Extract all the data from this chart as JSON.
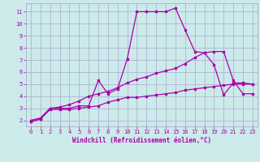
{
  "background_color": "#cceaea",
  "grid_color": "#aaaacc",
  "line_color": "#aa00aa",
  "xlim": [
    -0.5,
    23.5
  ],
  "ylim": [
    1.5,
    11.7
  ],
  "xlabel": "Windchill (Refroidissement éolien,°C)",
  "yticks": [
    2,
    3,
    4,
    5,
    6,
    7,
    8,
    9,
    10,
    11
  ],
  "xticks": [
    0,
    1,
    2,
    3,
    4,
    5,
    6,
    7,
    8,
    9,
    10,
    11,
    12,
    13,
    14,
    15,
    16,
    17,
    18,
    19,
    20,
    21,
    22,
    23
  ],
  "series1_x": [
    0,
    1,
    2,
    3,
    4,
    5,
    6,
    7,
    8,
    9,
    10,
    11,
    12,
    13,
    14,
    15,
    16,
    17,
    18,
    19,
    20,
    21,
    22,
    23
  ],
  "series1_y": [
    1.9,
    2.1,
    3.0,
    3.0,
    3.0,
    3.2,
    3.2,
    5.3,
    4.2,
    4.6,
    7.1,
    11.0,
    11.0,
    11.0,
    11.0,
    11.3,
    9.5,
    7.7,
    7.6,
    6.6,
    4.1,
    5.1,
    5.1,
    5.0
  ],
  "series2_x": [
    0,
    1,
    2,
    3,
    4,
    5,
    6,
    7,
    8,
    9,
    10,
    11,
    12,
    13,
    14,
    15,
    16,
    17,
    18,
    19,
    20,
    21,
    22,
    23
  ],
  "series2_y": [
    2.0,
    2.2,
    3.0,
    3.1,
    3.3,
    3.6,
    4.0,
    4.2,
    4.4,
    4.7,
    5.1,
    5.4,
    5.6,
    5.9,
    6.1,
    6.3,
    6.7,
    7.2,
    7.6,
    7.7,
    7.7,
    5.3,
    4.2,
    4.2
  ],
  "series3_x": [
    0,
    1,
    2,
    3,
    4,
    5,
    6,
    7,
    8,
    9,
    10,
    11,
    12,
    13,
    14,
    15,
    16,
    17,
    18,
    19,
    20,
    21,
    22,
    23
  ],
  "series3_y": [
    1.9,
    2.1,
    2.9,
    2.9,
    2.9,
    3.0,
    3.1,
    3.2,
    3.5,
    3.7,
    3.9,
    3.9,
    4.0,
    4.1,
    4.2,
    4.3,
    4.5,
    4.6,
    4.7,
    4.8,
    4.9,
    5.0,
    5.0,
    5.0
  ],
  "marker_size": 2.0,
  "line_width": 0.9,
  "tick_fontsize": 5.0,
  "xlabel_fontsize": 5.5
}
